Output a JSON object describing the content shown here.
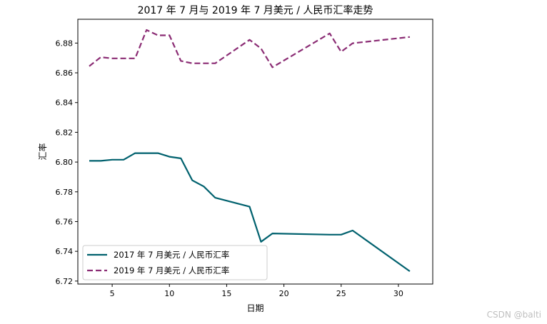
{
  "chart_data": {
    "type": "line",
    "title": "2017 年 7 月与 2019 年 7 月美元 / 人民币汇率走势",
    "xlabel": "日期",
    "ylabel": "汇率",
    "xlim": [
      2,
      33
    ],
    "ylim": [
      6.718,
      6.896
    ],
    "xticks": [
      5,
      10,
      15,
      20,
      25,
      30
    ],
    "yticks": [
      6.72,
      6.74,
      6.76,
      6.78,
      6.8,
      6.82,
      6.84,
      6.86,
      6.88
    ],
    "legend_position": "lower-left",
    "grid": false,
    "series": [
      {
        "name": "2017 年 7 月美元 / 人民币汇率",
        "color": "#00616e",
        "style": "solid",
        "x": [
          3,
          4,
          5,
          6,
          7,
          8,
          9,
          10,
          11,
          12,
          13,
          14,
          17,
          18,
          19,
          24,
          25,
          26,
          31
        ],
        "y": [
          6.8008,
          6.8008,
          6.8016,
          6.8016,
          6.806,
          6.806,
          6.806,
          6.8036,
          6.8025,
          6.7877,
          6.7836,
          6.776,
          6.77,
          6.7464,
          6.752,
          6.7512,
          6.7512,
          6.754,
          6.7266
        ]
      },
      {
        "name": "2019 年 7 月美元 / 人民币汇率",
        "color": "#8b2c74",
        "style": "dashed",
        "x": [
          3,
          4,
          5,
          6,
          7,
          8,
          9,
          10,
          11,
          12,
          13,
          14,
          17,
          18,
          19,
          24,
          25,
          26,
          31
        ],
        "y": [
          6.8645,
          6.8705,
          6.8697,
          6.8697,
          6.8697,
          6.8888,
          6.8852,
          6.8852,
          6.868,
          6.8664,
          6.8664,
          6.8664,
          6.8822,
          6.8764,
          6.8637,
          6.8865,
          6.8741,
          6.8799,
          6.8841
        ]
      }
    ]
  },
  "watermark": "CSDN @balti"
}
